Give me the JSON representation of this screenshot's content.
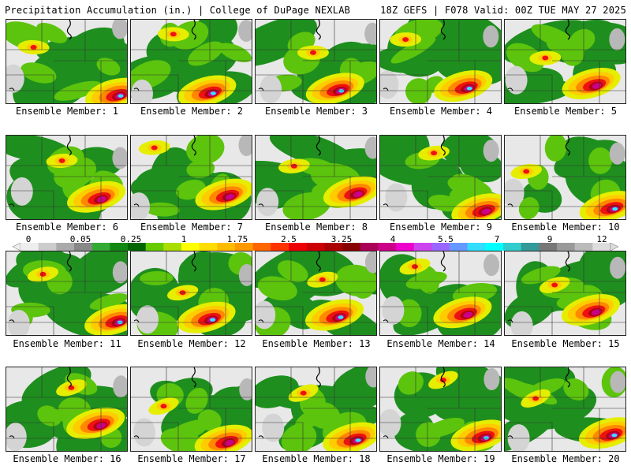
{
  "header": {
    "left": "Precipitation Accumulation (in.) | College of DuPage NEXLAB",
    "right": "18Z GEFS | F078 Valid: 00Z TUE MAY 27 2025"
  },
  "caption_prefix": "Ensemble Member: ",
  "members": [
    "1",
    "2",
    "3",
    "4",
    "5",
    "6",
    "7",
    "8",
    "9",
    "10",
    "11",
    "12",
    "13",
    "14",
    "15",
    "16",
    "17",
    "18",
    "19",
    "20"
  ],
  "colorbar": {
    "labels": [
      "0",
      "0.05",
      "0.25",
      "1",
      "1.75",
      "2.5",
      "3.25",
      "4",
      "5.5",
      "7",
      "9",
      "12"
    ],
    "colors": [
      "#eeeeee",
      "#cccccc",
      "#aaaaaa",
      "#888888",
      "#33aa33",
      "#118811",
      "#006600",
      "#66cc00",
      "#aadd00",
      "#ffff00",
      "#ffdd00",
      "#ffbb00",
      "#ff9900",
      "#ff6600",
      "#ff3300",
      "#ee0000",
      "#cc0000",
      "#aa0000",
      "#880000",
      "#aa0055",
      "#cc0088",
      "#ee00cc",
      "#cc44ee",
      "#9966ff",
      "#6699ff",
      "#33ddff",
      "#00ffff",
      "#33cccc",
      "#339999",
      "#777777",
      "#999999",
      "#bbbbbb",
      "#dddddd"
    ]
  }
}
